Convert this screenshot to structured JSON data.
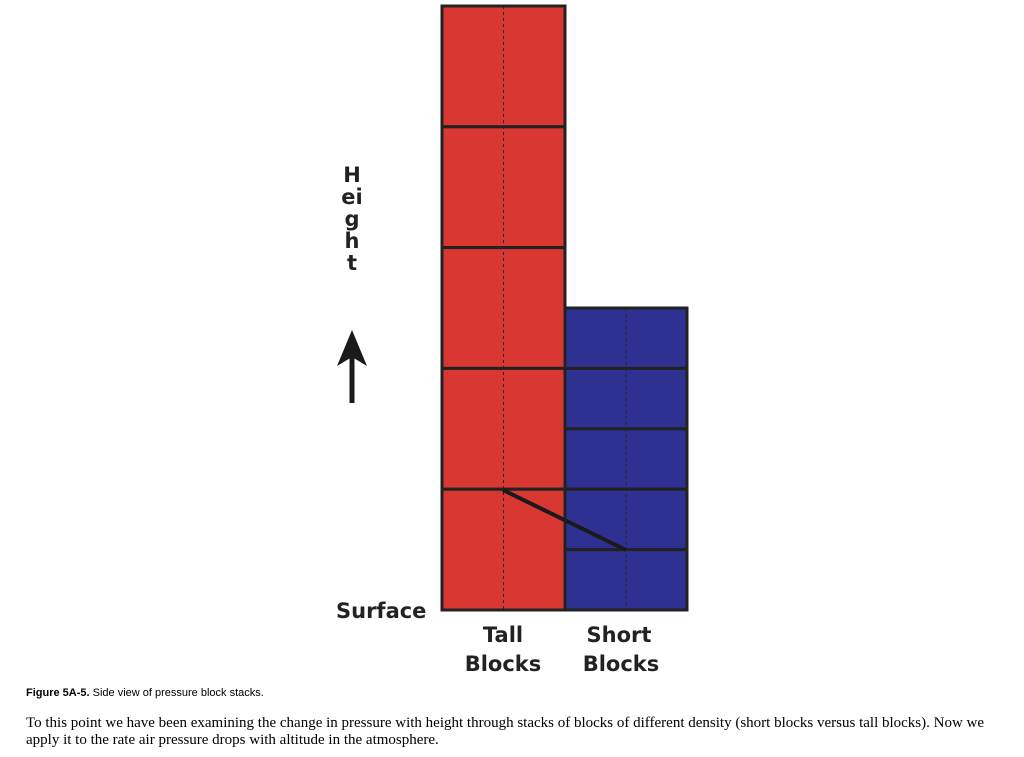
{
  "diagram": {
    "axis_label": "Height",
    "surface_label": "Surface",
    "stacks": [
      {
        "label": [
          "Tall",
          "Blocks"
        ]
      },
      {
        "label": [
          "Short",
          "Blocks"
        ]
      }
    ]
  },
  "caption": {
    "label": "Figure 5A-5.",
    "text": "Side view of pressure block stacks."
  },
  "paragraph": "To this point we have been examining the change in pressure with height through stacks of blocks of different density (short blocks versus tall blocks). Now we apply it to the rate air pressure drops with altitude in the atmosphere."
}
